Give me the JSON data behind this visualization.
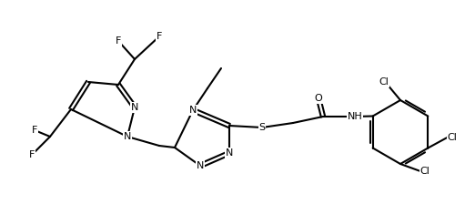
{
  "background_color": "#ffffff",
  "line_color": "#000000",
  "figsize": [
    5.22,
    2.24
  ],
  "dpi": 100,
  "atoms": {
    "comment": "all coordinates in matplotlib axes units (x: 0-522, y: 0-224, y=0 at bottom)"
  }
}
